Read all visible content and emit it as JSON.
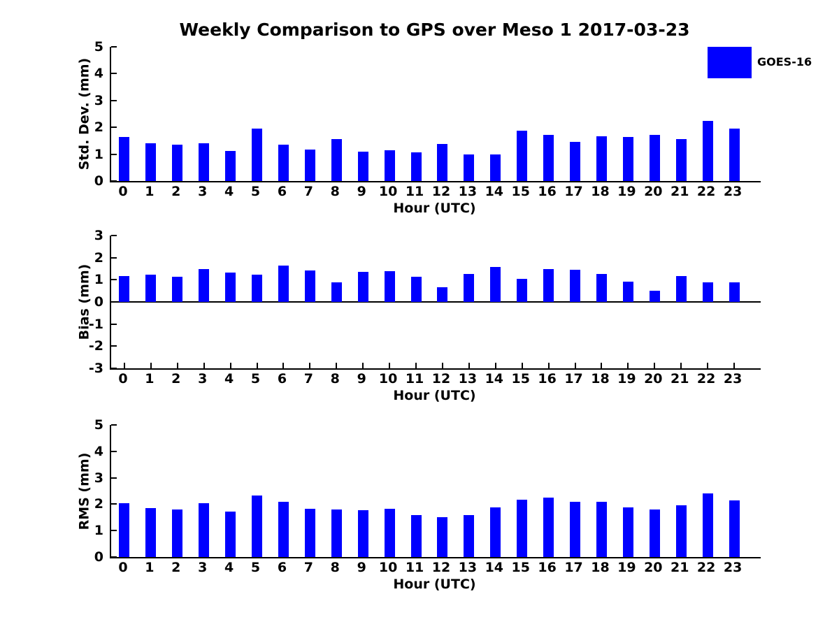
{
  "title": "Weekly Comparison to GPS over Meso 1 2017-03-23",
  "legend": {
    "label": "GOES-16",
    "color": "#0000ff"
  },
  "chart_data": [
    {
      "type": "bar",
      "series_name": "GOES-16",
      "xlabel": "Hour (UTC)",
      "ylabel": "Std. Dev. (mm)",
      "categories": [
        "0",
        "1",
        "2",
        "3",
        "4",
        "5",
        "6",
        "7",
        "8",
        "9",
        "10",
        "11",
        "12",
        "13",
        "14",
        "15",
        "16",
        "17",
        "18",
        "19",
        "20",
        "21",
        "22",
        "23"
      ],
      "values": [
        1.65,
        1.4,
        1.35,
        1.4,
        1.12,
        1.95,
        1.35,
        1.18,
        1.57,
        1.1,
        1.15,
        1.08,
        1.37,
        1.0,
        1.0,
        1.88,
        1.72,
        1.47,
        1.67,
        1.65,
        1.72,
        1.57,
        2.25,
        1.95
      ],
      "ylim": [
        0,
        5
      ],
      "yticks": [
        0,
        1,
        2,
        3,
        4,
        5
      ],
      "bar_color": "#0000ff",
      "grid": false,
      "legend_position": "upper-right-outside"
    },
    {
      "type": "bar",
      "series_name": "GOES-16",
      "xlabel": "Hour (UTC)",
      "ylabel": "Bias (mm)",
      "categories": [
        "0",
        "1",
        "2",
        "3",
        "4",
        "5",
        "6",
        "7",
        "8",
        "9",
        "10",
        "11",
        "12",
        "13",
        "14",
        "15",
        "16",
        "17",
        "18",
        "19",
        "20",
        "21",
        "22",
        "23"
      ],
      "values": [
        1.18,
        1.22,
        1.15,
        1.5,
        1.32,
        1.22,
        1.63,
        1.42,
        0.88,
        1.35,
        1.38,
        1.15,
        0.67,
        1.27,
        1.58,
        1.03,
        1.48,
        1.45,
        1.27,
        0.92,
        0.52,
        1.18,
        0.9,
        0.9
      ],
      "ylim": [
        -3,
        3
      ],
      "yticks": [
        3,
        2,
        1,
        0,
        -1,
        -2,
        -3
      ],
      "bar_color": "#0000ff",
      "grid": false
    },
    {
      "type": "bar",
      "series_name": "GOES-16",
      "xlabel": "Hour (UTC)",
      "ylabel": "RMS (mm)",
      "categories": [
        "0",
        "1",
        "2",
        "3",
        "4",
        "5",
        "6",
        "7",
        "8",
        "9",
        "10",
        "11",
        "12",
        "13",
        "14",
        "15",
        "16",
        "17",
        "18",
        "19",
        "20",
        "21",
        "22",
        "23"
      ],
      "values": [
        2.03,
        1.85,
        1.8,
        2.03,
        1.72,
        2.32,
        2.1,
        1.82,
        1.8,
        1.77,
        1.83,
        1.58,
        1.5,
        1.6,
        1.87,
        2.17,
        2.25,
        2.08,
        2.1,
        1.87,
        1.8,
        1.97,
        2.4,
        2.15
      ],
      "ylim": [
        0,
        5
      ],
      "yticks": [
        0,
        1,
        2,
        3,
        4,
        5
      ],
      "bar_color": "#0000ff",
      "grid": false
    }
  ]
}
